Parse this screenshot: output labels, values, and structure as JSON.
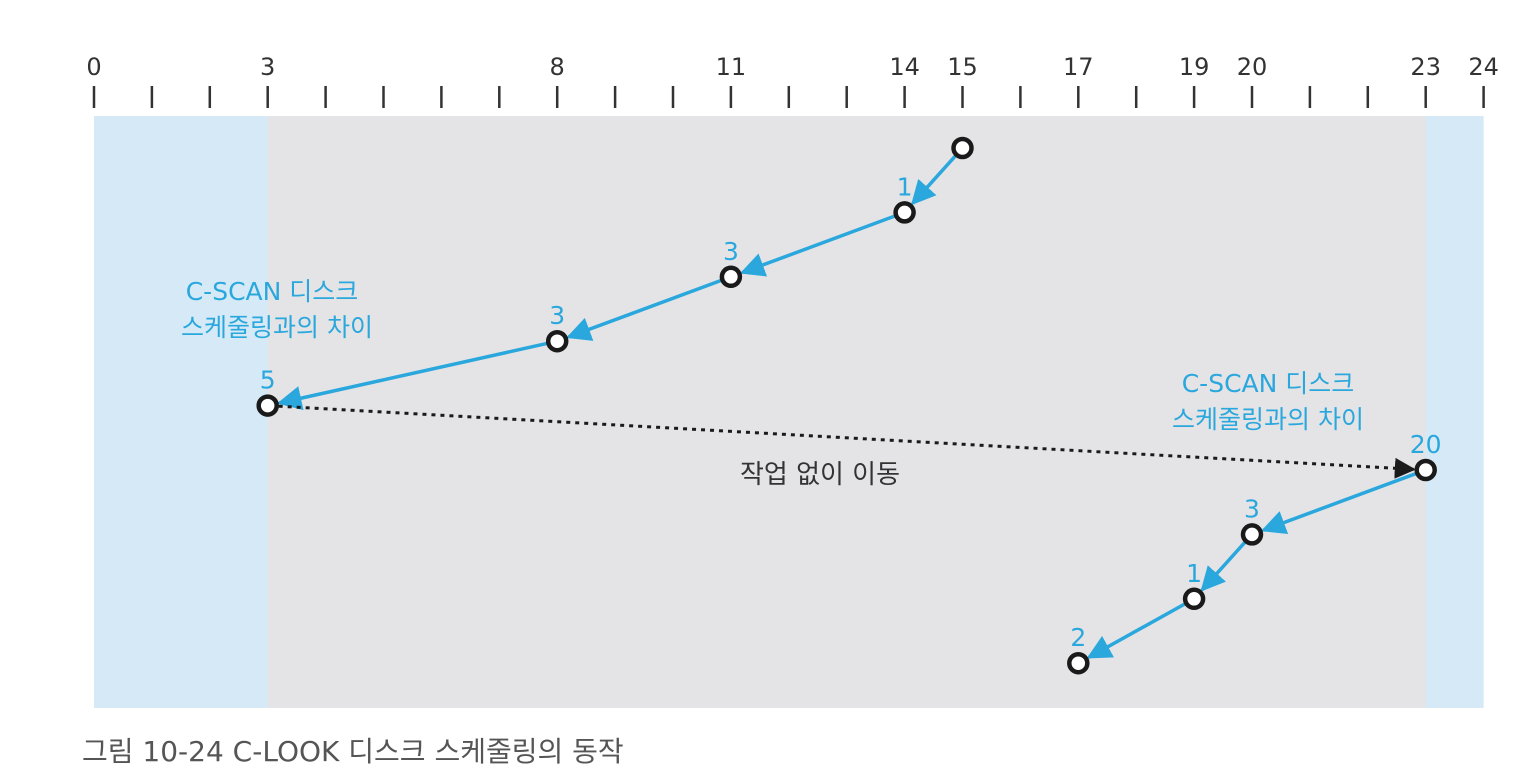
{
  "figure": {
    "caption": "그림 10-24  C-LOOK 디스크 스케줄링의 동작",
    "axis_ticks": [
      "0",
      "3",
      "8",
      "11",
      "14",
      "15",
      "17",
      "19",
      "20",
      "23",
      "24"
    ],
    "note_left": [
      "C-SCAN 디스크",
      "스케줄링과의 차이"
    ],
    "note_right": [
      "C-SCAN 디스크",
      "스케줄링과의 차이"
    ],
    "jump_label": "작업 없이 이동",
    "colors": {
      "highlight_band": "#d5eaf6",
      "work_area": "#e4e4e6",
      "accent": "#2aa7dc",
      "dark": "#1a1a1a",
      "caption": "#555555"
    },
    "axis_range": [
      0,
      24
    ],
    "visits": [
      {
        "cylinder": 15,
        "label": ""
      },
      {
        "cylinder": 14,
        "label": "1"
      },
      {
        "cylinder": 11,
        "label": "3"
      },
      {
        "cylinder": 8,
        "label": "3"
      },
      {
        "cylinder": 3,
        "label": "5"
      },
      {
        "cylinder": 23,
        "label": "20"
      },
      {
        "cylinder": 20,
        "label": "3"
      },
      {
        "cylinder": 19,
        "label": "1"
      },
      {
        "cylinder": 17,
        "label": "2"
      }
    ]
  }
}
